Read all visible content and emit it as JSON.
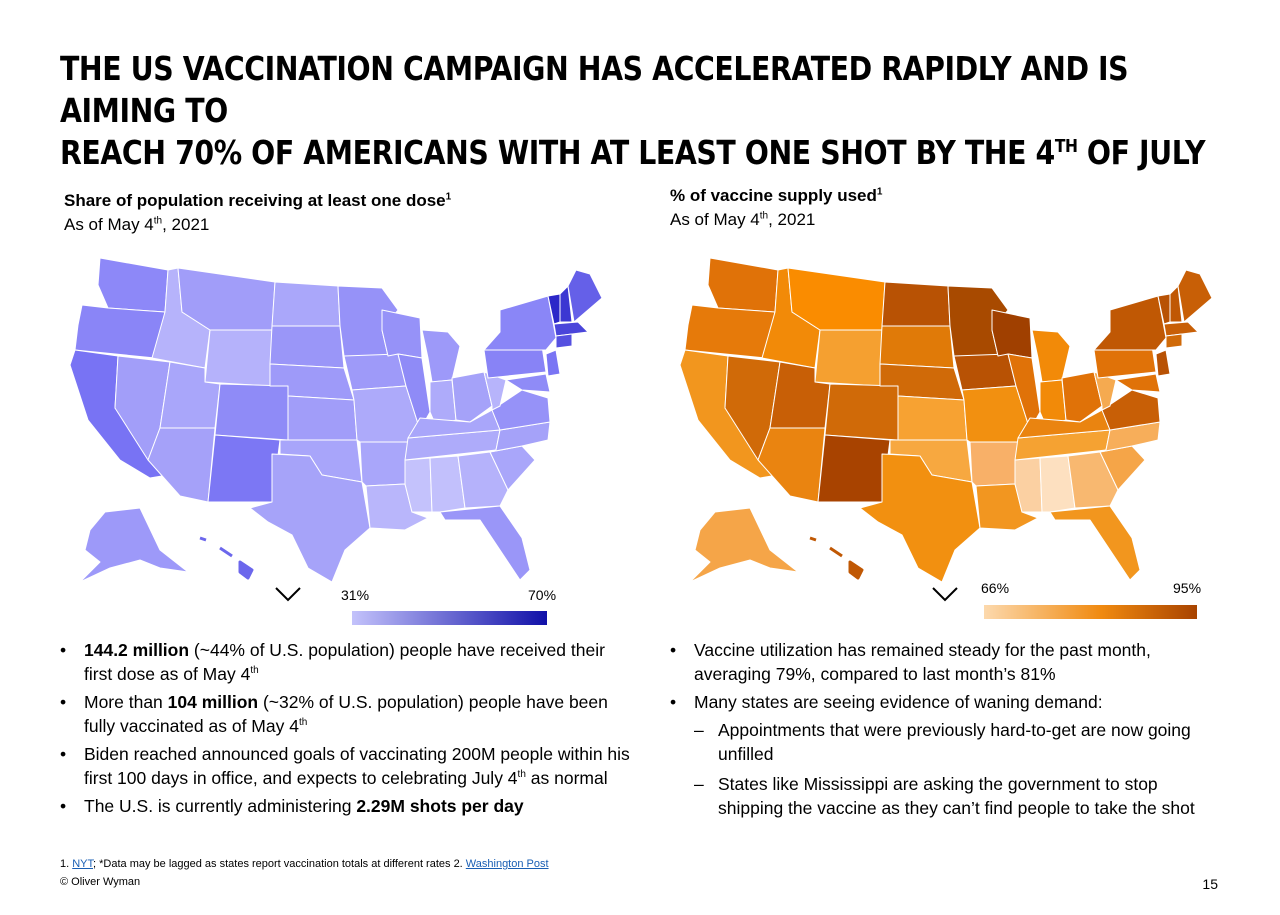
{
  "title": {
    "line1": "THE US VACCINATION CAMPAIGN HAS ACCELERATED RAPIDLY AND IS AIMING TO",
    "line2_pre": "REACH 70% OF AMERICANS WITH AT LEAST ONE SHOT BY THE 4",
    "line2_sup": "TH",
    "line2_post": " OF JULY"
  },
  "left_panel": {
    "heading": "Share of population receiving at least one dose",
    "heading_sup": "1",
    "date_pre": "As of May 4",
    "date_sup": "th",
    "date_post": ", 2021",
    "legend_min": "31%",
    "legend_max": "70%",
    "colors": {
      "low": "#c3c2fb",
      "high": "#1010a8"
    }
  },
  "right_panel": {
    "heading": "% of vaccine supply used",
    "heading_sup": "1",
    "date_pre": "As of May 4",
    "date_sup": "th",
    "date_post": ", 2021",
    "legend_min": "66%",
    "legend_max": "95%",
    "colors": {
      "low": "#fcd9ad",
      "high": "#a84300"
    }
  },
  "left_bullets": {
    "b1_bold": "144.2 million",
    "b1_text": " (~44% of U.S. population) people have received their first dose as of May 4",
    "b1_sup": "th",
    "b2_pre": "More than ",
    "b2_bold": "104 million",
    "b2_text": " (~32% of U.S. population) people have been fully vaccinated as of May 4",
    "b2_sup": "th",
    "b3_text": "Biden reached announced goals of vaccinating 200M people within his first 100 days in office, and expects to celebrating July 4",
    "b3_sup": "th",
    "b3_post": " as normal",
    "b4_pre": "The U.S. is currently administering ",
    "b4_bold": "2.29M shots per day"
  },
  "right_bullets": {
    "b1": "Vaccine utilization has remained steady for the past month, averaging  79%, compared to last month’s 81%",
    "b2": "Many states are seeing evidence of waning demand:",
    "s1": "Appointments that were previously hard-to-get are now going unfilled",
    "s2": "States like Mississippi are asking the government to stop shipping the vaccine as they can’t find people to take the shot"
  },
  "footnote": {
    "num": "1. ",
    "link1": "NYT",
    "text": "; *Data may be lagged as states report vaccination totals at different rates 2. ",
    "link2": "Washington Post"
  },
  "copyright": "© Oliver Wyman",
  "page_number": "15"
}
